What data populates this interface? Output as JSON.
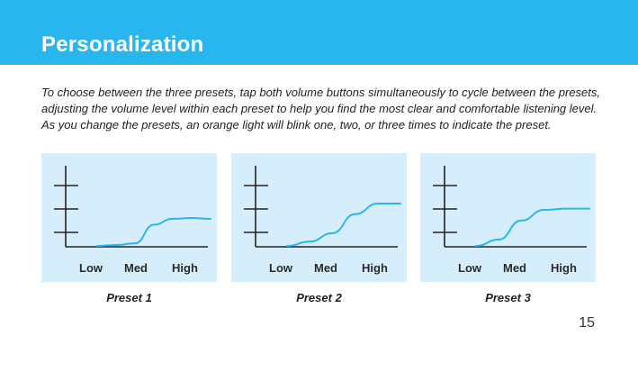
{
  "header": {
    "title": "Personalization",
    "background": "#27b6ee"
  },
  "intro": {
    "lines": [
      "To choose between the three presets, tap both volume buttons simultaneously to cycle between the presets,",
      "adjusting the volume level within each preset to help you find the most clear and comfortable listening level.",
      "As you change the presets, an orange light will blink one, two, or three times to indicate the preset."
    ]
  },
  "graphs": [
    {
      "label": "Preset 1",
      "x_labels": [
        "Low",
        "Med",
        "High"
      ],
      "curve_levels": [
        0.0,
        0.02,
        0.06,
        0.5,
        0.64,
        0.66,
        0.64
      ],
      "curve_color": "#27b6ee"
    },
    {
      "label": "Preset 2",
      "x_labels": [
        "Low",
        "Med",
        "High"
      ],
      "curve_levels": [
        0.0,
        0.1,
        0.3,
        0.75,
        1.0,
        1.0
      ],
      "curve_color": "#27b6ee"
    },
    {
      "label": "Preset 3",
      "x_labels": [
        "Low",
        "Med",
        "High"
      ],
      "curve_levels": [
        0.0,
        0.15,
        0.6,
        0.85,
        0.88,
        0.88
      ],
      "curve_color": "#27b6ee"
    }
  ],
  "page_number": "15"
}
